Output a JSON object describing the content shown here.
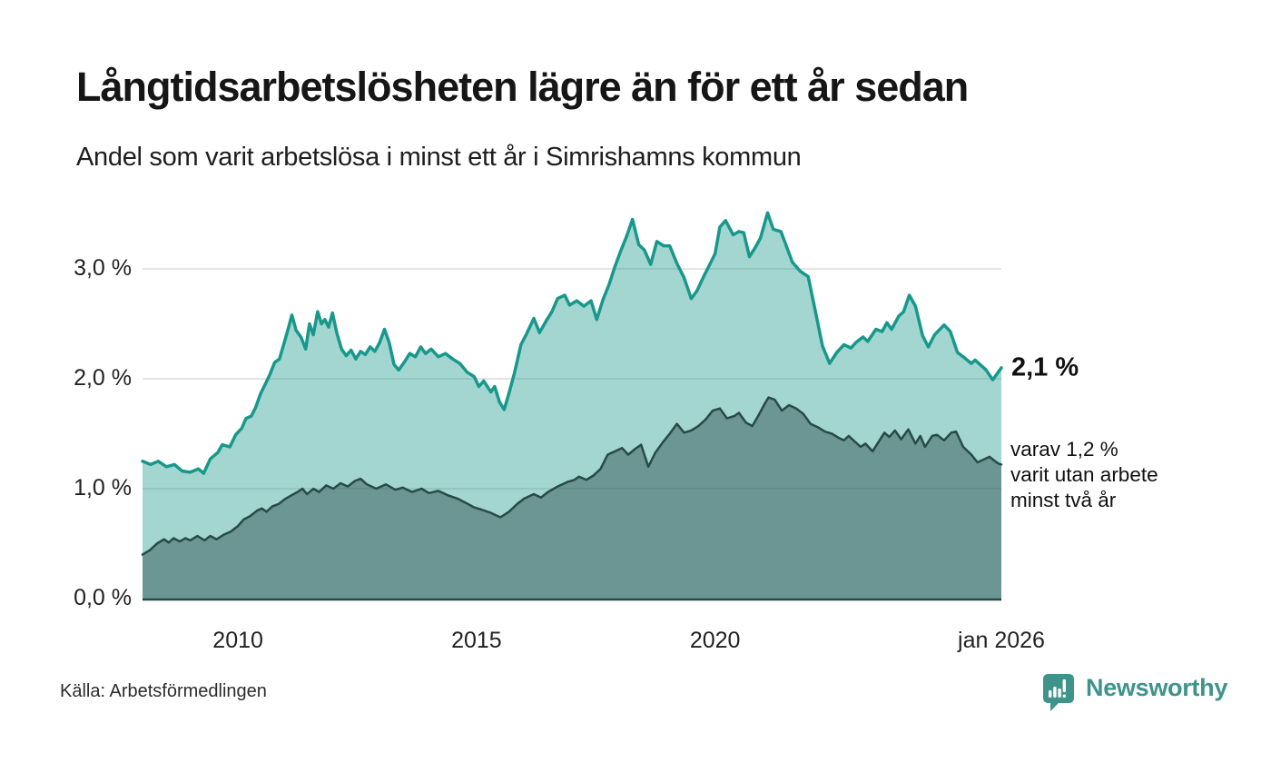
{
  "header": {
    "title": "Långtidsarbetslösheten lägre än för ett år sedan",
    "subtitle": "Andel som varit arbetslösa i minst ett år i Simrishamns kommun"
  },
  "annotations": {
    "latest_total": "2,1 %",
    "secondary_lines": [
      "varav 1,2 %",
      "varit utan arbete",
      "minst två år"
    ]
  },
  "footer": {
    "source": "Källa: Arbetsförmedlingen",
    "brand": "Newsworthy"
  },
  "colors": {
    "accent_line": "#18988b",
    "accent_fill": "rgba(24,152,139,0.40)",
    "dark_line": "#284a47",
    "dark_fill": "rgba(40,74,71,0.45)",
    "gridline": "#dcdcdc",
    "brand_teal": "#3e948b"
  },
  "chart_data": {
    "type": "area",
    "title": "Långtidsarbetslösheten lägre än för ett år sedan",
    "subtitle": "Andel som varit arbetslösa i minst ett år i Simrishamns kommun",
    "unit": "%",
    "x_range": [
      2008,
      2026
    ],
    "y_range": [
      0,
      3.55
    ],
    "grid": true,
    "x_axis": {
      "ticks": [
        {
          "label": "2010",
          "year": 2010
        },
        {
          "label": "2015",
          "year": 2015
        },
        {
          "label": "2020",
          "year": 2020
        },
        {
          "label": "jan 2026",
          "year": 2026
        }
      ]
    },
    "y_axis": {
      "ticks": [
        {
          "label": "0,0 %",
          "value": 0
        },
        {
          "label": "1,0 %",
          "value": 1
        },
        {
          "label": "2,0 %",
          "value": 2
        },
        {
          "label": "3,0 %",
          "value": 3
        }
      ]
    },
    "series": [
      {
        "id": "unemployed-min-1-year",
        "name": "Andel arbetslösa minst ett år",
        "latest_value": 2.1,
        "line_color": "#18988b",
        "fill_color": "rgba(24,152,139,0.40)",
        "line_width": 3.5,
        "points": [
          [
            2008.0,
            1.25
          ],
          [
            2008.17,
            1.22
          ],
          [
            2008.33,
            1.25
          ],
          [
            2008.5,
            1.2
          ],
          [
            2008.67,
            1.22
          ],
          [
            2008.83,
            1.16
          ],
          [
            2009.0,
            1.15
          ],
          [
            2009.17,
            1.18
          ],
          [
            2009.28,
            1.14
          ],
          [
            2009.42,
            1.27
          ],
          [
            2009.58,
            1.33
          ],
          [
            2009.67,
            1.4
          ],
          [
            2009.83,
            1.38
          ],
          [
            2009.95,
            1.49
          ],
          [
            2010.08,
            1.55
          ],
          [
            2010.17,
            1.64
          ],
          [
            2010.28,
            1.66
          ],
          [
            2010.37,
            1.74
          ],
          [
            2010.47,
            1.86
          ],
          [
            2010.57,
            1.95
          ],
          [
            2010.67,
            2.04
          ],
          [
            2010.77,
            2.15
          ],
          [
            2010.87,
            2.18
          ],
          [
            2010.97,
            2.33
          ],
          [
            2011.05,
            2.45
          ],
          [
            2011.13,
            2.58
          ],
          [
            2011.22,
            2.44
          ],
          [
            2011.32,
            2.38
          ],
          [
            2011.42,
            2.27
          ],
          [
            2011.5,
            2.5
          ],
          [
            2011.58,
            2.4
          ],
          [
            2011.67,
            2.61
          ],
          [
            2011.75,
            2.5
          ],
          [
            2011.82,
            2.54
          ],
          [
            2011.9,
            2.47
          ],
          [
            2011.98,
            2.6
          ],
          [
            2012.07,
            2.42
          ],
          [
            2012.17,
            2.27
          ],
          [
            2012.27,
            2.21
          ],
          [
            2012.37,
            2.26
          ],
          [
            2012.47,
            2.18
          ],
          [
            2012.57,
            2.25
          ],
          [
            2012.67,
            2.22
          ],
          [
            2012.77,
            2.29
          ],
          [
            2012.87,
            2.25
          ],
          [
            2012.97,
            2.33
          ],
          [
            2013.07,
            2.45
          ],
          [
            2013.17,
            2.33
          ],
          [
            2013.27,
            2.13
          ],
          [
            2013.37,
            2.08
          ],
          [
            2013.5,
            2.16
          ],
          [
            2013.6,
            2.23
          ],
          [
            2013.72,
            2.2
          ],
          [
            2013.83,
            2.29
          ],
          [
            2013.93,
            2.23
          ],
          [
            2014.05,
            2.27
          ],
          [
            2014.2,
            2.2
          ],
          [
            2014.35,
            2.23
          ],
          [
            2014.5,
            2.18
          ],
          [
            2014.65,
            2.14
          ],
          [
            2014.8,
            2.06
          ],
          [
            2014.95,
            2.02
          ],
          [
            2015.05,
            1.93
          ],
          [
            2015.15,
            1.98
          ],
          [
            2015.3,
            1.88
          ],
          [
            2015.38,
            1.93
          ],
          [
            2015.48,
            1.79
          ],
          [
            2015.58,
            1.72
          ],
          [
            2015.7,
            1.9
          ],
          [
            2015.8,
            2.06
          ],
          [
            2015.93,
            2.31
          ],
          [
            2016.05,
            2.41
          ],
          [
            2016.2,
            2.55
          ],
          [
            2016.32,
            2.42
          ],
          [
            2016.45,
            2.52
          ],
          [
            2016.58,
            2.61
          ],
          [
            2016.7,
            2.73
          ],
          [
            2016.85,
            2.76
          ],
          [
            2016.95,
            2.67
          ],
          [
            2017.1,
            2.71
          ],
          [
            2017.25,
            2.66
          ],
          [
            2017.4,
            2.71
          ],
          [
            2017.52,
            2.54
          ],
          [
            2017.65,
            2.72
          ],
          [
            2017.78,
            2.86
          ],
          [
            2017.9,
            3.02
          ],
          [
            2018.02,
            3.16
          ],
          [
            2018.15,
            3.3
          ],
          [
            2018.27,
            3.45
          ],
          [
            2018.4,
            3.22
          ],
          [
            2018.52,
            3.17
          ],
          [
            2018.65,
            3.04
          ],
          [
            2018.78,
            3.25
          ],
          [
            2018.92,
            3.21
          ],
          [
            2019.05,
            3.21
          ],
          [
            2019.2,
            3.05
          ],
          [
            2019.35,
            2.92
          ],
          [
            2019.5,
            2.73
          ],
          [
            2019.62,
            2.8
          ],
          [
            2019.75,
            2.92
          ],
          [
            2019.9,
            3.05
          ],
          [
            2020.0,
            3.14
          ],
          [
            2020.1,
            3.38
          ],
          [
            2020.22,
            3.44
          ],
          [
            2020.38,
            3.31
          ],
          [
            2020.5,
            3.34
          ],
          [
            2020.6,
            3.33
          ],
          [
            2020.72,
            3.11
          ],
          [
            2020.85,
            3.2
          ],
          [
            2020.95,
            3.28
          ],
          [
            2021.1,
            3.51
          ],
          [
            2021.22,
            3.36
          ],
          [
            2021.38,
            3.34
          ],
          [
            2021.5,
            3.2
          ],
          [
            2021.62,
            3.06
          ],
          [
            2021.78,
            2.98
          ],
          [
            2021.95,
            2.93
          ],
          [
            2022.1,
            2.62
          ],
          [
            2022.25,
            2.3
          ],
          [
            2022.4,
            2.14
          ],
          [
            2022.55,
            2.24
          ],
          [
            2022.7,
            2.31
          ],
          [
            2022.85,
            2.28
          ],
          [
            2022.95,
            2.33
          ],
          [
            2023.1,
            2.38
          ],
          [
            2023.2,
            2.34
          ],
          [
            2023.37,
            2.45
          ],
          [
            2023.5,
            2.43
          ],
          [
            2023.6,
            2.51
          ],
          [
            2023.7,
            2.45
          ],
          [
            2023.85,
            2.57
          ],
          [
            2023.95,
            2.61
          ],
          [
            2024.07,
            2.76
          ],
          [
            2024.2,
            2.66
          ],
          [
            2024.35,
            2.39
          ],
          [
            2024.47,
            2.29
          ],
          [
            2024.6,
            2.4
          ],
          [
            2024.8,
            2.49
          ],
          [
            2024.93,
            2.43
          ],
          [
            2025.08,
            2.24
          ],
          [
            2025.2,
            2.2
          ],
          [
            2025.37,
            2.14
          ],
          [
            2025.45,
            2.17
          ],
          [
            2025.68,
            2.08
          ],
          [
            2025.82,
            1.99
          ],
          [
            2026.0,
            2.1
          ]
        ]
      },
      {
        "id": "unemployed-min-2-years",
        "name": "Varav utan arbete minst två år",
        "latest_value": 1.2,
        "line_color": "#284a47",
        "fill_color": "rgba(40,74,71,0.45)",
        "line_width": 2.5,
        "points": [
          [
            2008.0,
            0.4
          ],
          [
            2008.15,
            0.44
          ],
          [
            2008.3,
            0.5
          ],
          [
            2008.45,
            0.54
          ],
          [
            2008.55,
            0.51
          ],
          [
            2008.65,
            0.55
          ],
          [
            2008.78,
            0.52
          ],
          [
            2008.9,
            0.55
          ],
          [
            2009.0,
            0.53
          ],
          [
            2009.15,
            0.57
          ],
          [
            2009.3,
            0.53
          ],
          [
            2009.42,
            0.57
          ],
          [
            2009.55,
            0.54
          ],
          [
            2009.7,
            0.58
          ],
          [
            2009.85,
            0.61
          ],
          [
            2010.0,
            0.66
          ],
          [
            2010.12,
            0.72
          ],
          [
            2010.25,
            0.75
          ],
          [
            2010.4,
            0.8
          ],
          [
            2010.5,
            0.82
          ],
          [
            2010.6,
            0.79
          ],
          [
            2010.72,
            0.84
          ],
          [
            2010.85,
            0.86
          ],
          [
            2011.0,
            0.91
          ],
          [
            2011.12,
            0.94
          ],
          [
            2011.25,
            0.97
          ],
          [
            2011.35,
            1.0
          ],
          [
            2011.45,
            0.95
          ],
          [
            2011.58,
            1.0
          ],
          [
            2011.7,
            0.97
          ],
          [
            2011.85,
            1.03
          ],
          [
            2012.0,
            1.0
          ],
          [
            2012.15,
            1.05
          ],
          [
            2012.3,
            1.02
          ],
          [
            2012.45,
            1.07
          ],
          [
            2012.57,
            1.09
          ],
          [
            2012.7,
            1.04
          ],
          [
            2012.9,
            1.0
          ],
          [
            2013.1,
            1.04
          ],
          [
            2013.3,
            0.99
          ],
          [
            2013.45,
            1.01
          ],
          [
            2013.65,
            0.97
          ],
          [
            2013.85,
            1.0
          ],
          [
            2014.0,
            0.96
          ],
          [
            2014.2,
            0.98
          ],
          [
            2014.4,
            0.94
          ],
          [
            2014.6,
            0.91
          ],
          [
            2014.78,
            0.87
          ],
          [
            2014.95,
            0.83
          ],
          [
            2015.1,
            0.81
          ],
          [
            2015.3,
            0.78
          ],
          [
            2015.5,
            0.74
          ],
          [
            2015.68,
            0.79
          ],
          [
            2015.85,
            0.86
          ],
          [
            2016.0,
            0.91
          ],
          [
            2016.2,
            0.95
          ],
          [
            2016.35,
            0.92
          ],
          [
            2016.5,
            0.97
          ],
          [
            2016.7,
            1.02
          ],
          [
            2016.9,
            1.06
          ],
          [
            2017.05,
            1.08
          ],
          [
            2017.15,
            1.11
          ],
          [
            2017.3,
            1.08
          ],
          [
            2017.45,
            1.12
          ],
          [
            2017.6,
            1.18
          ],
          [
            2017.75,
            1.31
          ],
          [
            2017.9,
            1.34
          ],
          [
            2018.05,
            1.37
          ],
          [
            2018.18,
            1.31
          ],
          [
            2018.32,
            1.36
          ],
          [
            2018.45,
            1.4
          ],
          [
            2018.6,
            1.2
          ],
          [
            2018.75,
            1.33
          ],
          [
            2018.9,
            1.42
          ],
          [
            2019.05,
            1.5
          ],
          [
            2019.2,
            1.59
          ],
          [
            2019.35,
            1.51
          ],
          [
            2019.5,
            1.53
          ],
          [
            2019.65,
            1.57
          ],
          [
            2019.8,
            1.63
          ],
          [
            2019.95,
            1.71
          ],
          [
            2020.1,
            1.73
          ],
          [
            2020.25,
            1.64
          ],
          [
            2020.4,
            1.66
          ],
          [
            2020.5,
            1.69
          ],
          [
            2020.65,
            1.6
          ],
          [
            2020.78,
            1.57
          ],
          [
            2020.9,
            1.66
          ],
          [
            2021.05,
            1.78
          ],
          [
            2021.12,
            1.83
          ],
          [
            2021.25,
            1.81
          ],
          [
            2021.4,
            1.71
          ],
          [
            2021.55,
            1.76
          ],
          [
            2021.7,
            1.73
          ],
          [
            2021.85,
            1.68
          ],
          [
            2022.0,
            1.59
          ],
          [
            2022.15,
            1.56
          ],
          [
            2022.3,
            1.52
          ],
          [
            2022.45,
            1.5
          ],
          [
            2022.6,
            1.46
          ],
          [
            2022.7,
            1.44
          ],
          [
            2022.8,
            1.48
          ],
          [
            2023.05,
            1.38
          ],
          [
            2023.15,
            1.41
          ],
          [
            2023.3,
            1.34
          ],
          [
            2023.55,
            1.51
          ],
          [
            2023.65,
            1.47
          ],
          [
            2023.77,
            1.53
          ],
          [
            2023.9,
            1.45
          ],
          [
            2024.05,
            1.54
          ],
          [
            2024.2,
            1.41
          ],
          [
            2024.3,
            1.48
          ],
          [
            2024.4,
            1.38
          ],
          [
            2024.55,
            1.48
          ],
          [
            2024.65,
            1.49
          ],
          [
            2024.8,
            1.44
          ],
          [
            2024.95,
            1.51
          ],
          [
            2025.05,
            1.52
          ],
          [
            2025.2,
            1.38
          ],
          [
            2025.37,
            1.31
          ],
          [
            2025.5,
            1.24
          ],
          [
            2025.75,
            1.29
          ],
          [
            2025.93,
            1.23
          ],
          [
            2026.0,
            1.22
          ]
        ]
      }
    ]
  }
}
